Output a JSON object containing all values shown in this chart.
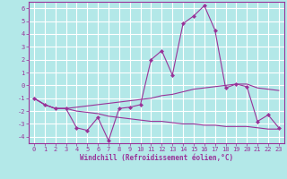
{
  "x": [
    0,
    1,
    2,
    3,
    4,
    5,
    6,
    7,
    8,
    9,
    10,
    11,
    12,
    13,
    14,
    15,
    16,
    17,
    18,
    19,
    20,
    21,
    22,
    23
  ],
  "y_main": [
    -1.0,
    -1.5,
    -1.8,
    -1.8,
    -3.3,
    -3.5,
    -2.5,
    -4.3,
    -1.8,
    -1.7,
    -1.5,
    2.0,
    2.7,
    0.8,
    4.8,
    5.4,
    6.2,
    4.3,
    -0.2,
    0.1,
    -0.1,
    -2.8,
    -2.3,
    -3.3
  ],
  "y_upper": [
    -1.0,
    -1.5,
    -1.8,
    -1.8,
    -1.7,
    -1.6,
    -1.5,
    -1.4,
    -1.3,
    -1.2,
    -1.1,
    -1.0,
    -0.8,
    -0.7,
    -0.5,
    -0.3,
    -0.2,
    -0.1,
    0.0,
    0.1,
    0.1,
    -0.2,
    -0.3,
    -0.4
  ],
  "y_lower": [
    -1.0,
    -1.5,
    -1.8,
    -1.8,
    -2.0,
    -2.1,
    -2.2,
    -2.4,
    -2.5,
    -2.6,
    -2.7,
    -2.8,
    -2.8,
    -2.9,
    -3.0,
    -3.0,
    -3.1,
    -3.1,
    -3.2,
    -3.2,
    -3.2,
    -3.3,
    -3.4,
    -3.4
  ],
  "color": "#993399",
  "bg_color": "#b3e8e8",
  "grid_color": "#ffffff",
  "xlabel": "Windchill (Refroidissement éolien,°C)",
  "ylim": [
    -4.5,
    6.5
  ],
  "xlim": [
    -0.5,
    23.5
  ],
  "marker": "D",
  "linewidth": 0.8,
  "markersize": 2.0,
  "tick_fontsize": 5.0,
  "xlabel_fontsize": 5.5
}
